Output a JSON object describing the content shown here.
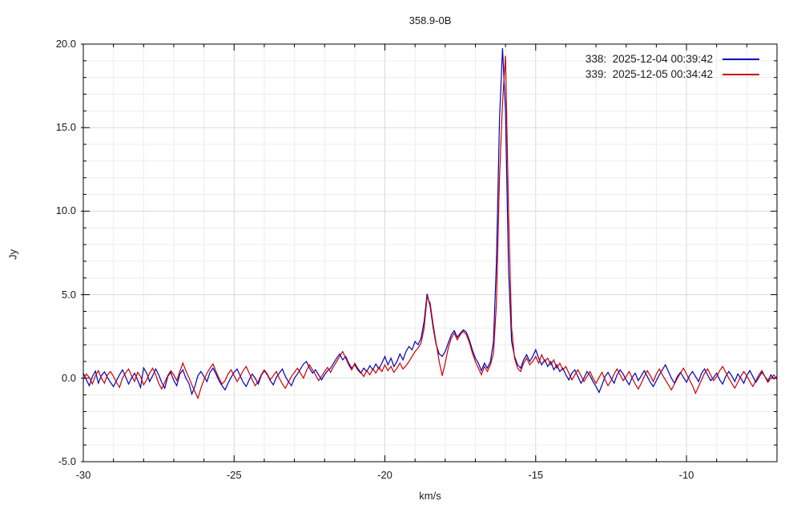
{
  "title": "358.9-0B",
  "axes": {
    "x_label": "km/s",
    "y_label": "Jy",
    "x_tick_labels": [
      "-30",
      "-25",
      "-20",
      "-15",
      "-10"
    ],
    "x_tick_values": [
      -30,
      -25,
      -20,
      -15,
      -10
    ],
    "y_tick_labels": [
      "20.0",
      "15.0",
      "10.0",
      "5.0",
      "0.0",
      "-5.0"
    ],
    "y_tick_values": [
      20,
      15,
      10,
      5,
      0,
      -5
    ]
  },
  "legend": {
    "entries": [
      {
        "id": "338",
        "label": "338:  2025-12-04 00:39:42",
        "color": "#0000bb"
      },
      {
        "id": "339",
        "label": "339:  2025-12-05 00:34:42",
        "color": "#cc0000"
      }
    ]
  },
  "colors": {
    "background": "#ffffff",
    "border": "#000000",
    "grid_minor": "#ececec",
    "grid_major": "#d8d8d8",
    "text": "#1a1a1a",
    "series_338": "#0000bb",
    "series_339": "#cc0000"
  },
  "chart_data": {
    "type": "line",
    "title": "358.9-0B",
    "xlabel": "km/s",
    "ylabel": "Jy",
    "xlim": [
      -30,
      -7
    ],
    "ylim": [
      -5,
      20
    ],
    "x_major_tick": 5,
    "x_minor_tick": 1,
    "y_major_tick": 5,
    "y_minor_tick": 1,
    "grid": "minor-and-major-lines",
    "legend_position": "top-right",
    "features_note": "main peak ~19.7 Jy at -16.05 km/s; secondary peak ~5.0 Jy at -18.6 km/s; double bump ~2.9 Jy at -17.7/-17.4 km/s; noise baseline ~0 Jy",
    "series": [
      {
        "name": "338:  2025-12-04 00:39:42",
        "color": "#0000bb",
        "x_start": -30.0,
        "dx": 0.1,
        "values": [
          0.3,
          -0.1,
          -0.45,
          0.1,
          0.42,
          -0.3,
          0.15,
          0.38,
          0.05,
          -0.25,
          -0.5,
          -0.15,
          0.2,
          0.5,
          0.1,
          -0.35,
          0.0,
          0.3,
          -0.1,
          -0.55,
          0.62,
          0.3,
          -0.2,
          0.15,
          0.55,
          0.2,
          -0.25,
          -0.6,
          0.1,
          0.35,
          -0.15,
          -0.45,
          0.25,
          0.5,
          0.0,
          -0.3,
          -0.95,
          -0.5,
          0.15,
          0.4,
          0.1,
          -0.2,
          0.35,
          0.6,
          0.25,
          -0.15,
          -0.45,
          -0.7,
          -0.3,
          0.05,
          0.35,
          0.55,
          0.15,
          -0.25,
          -0.5,
          -0.1,
          0.25,
          0.0,
          -0.35,
          0.15,
          0.45,
          0.2,
          -0.15,
          -0.4,
          0.05,
          0.3,
          0.55,
          0.1,
          -0.2,
          -0.45,
          0.0,
          0.25,
          0.55,
          0.85,
          1.0,
          0.6,
          0.3,
          0.5,
          0.2,
          -0.1,
          0.2,
          0.45,
          0.6,
          0.9,
          1.2,
          1.45,
          1.1,
          1.3,
          0.9,
          0.6,
          0.8,
          0.5,
          0.3,
          0.6,
          0.4,
          0.75,
          0.5,
          0.85,
          0.55,
          0.9,
          1.3,
          0.8,
          1.2,
          0.7,
          1.0,
          1.45,
          1.1,
          1.6,
          1.9,
          1.7,
          2.2,
          2.0,
          2.4,
          3.4,
          5.05,
          4.3,
          3.0,
          2.0,
          1.45,
          1.3,
          1.6,
          2.1,
          2.6,
          2.85,
          2.45,
          2.7,
          2.9,
          2.75,
          2.3,
          1.7,
          1.2,
          0.9,
          0.45,
          0.9,
          0.6,
          1.0,
          2.2,
          7.0,
          15.5,
          19.75,
          16.0,
          6.5,
          2.2,
          1.3,
          0.8,
          0.6,
          1.1,
          1.4,
          1.0,
          1.3,
          1.7,
          1.2,
          0.8,
          1.1,
          0.7,
          1.0,
          0.5,
          0.8,
          0.4,
          0.6,
          0.2,
          -0.1,
          0.3,
          0.5,
          0.1,
          -0.3,
          0.0,
          0.4,
          0.15,
          -0.2,
          -0.5,
          -0.85,
          -0.4,
          0.1,
          0.35,
          0.0,
          -0.3,
          0.2,
          0.5,
          0.25,
          -0.1,
          -0.4,
          0.05,
          0.3,
          -0.15,
          0.15,
          0.45,
          0.1,
          -0.25,
          -0.5,
          -0.15,
          0.2,
          0.5,
          0.8,
          0.4,
          0.0,
          -0.3,
          0.1,
          0.35,
          0.05,
          -0.25,
          0.15,
          0.4,
          0.1,
          -0.2,
          0.3,
          0.55,
          0.2,
          -0.15,
          0.05,
          0.3,
          -0.1,
          -0.35,
          0.1,
          0.4,
          0.15,
          -0.2,
          0.25,
          0.0,
          -0.3,
          0.15,
          0.45,
          0.1,
          -0.25,
          0.05,
          0.35,
          0.1,
          -0.15,
          0.2,
          -0.05,
          0.1
        ]
      },
      {
        "name": "339:  2025-12-05 00:34:42",
        "color": "#cc0000",
        "x_start": -30.0,
        "dx": 0.1,
        "values": [
          -0.1,
          0.25,
          0.05,
          -0.35,
          0.15,
          0.45,
          0.0,
          -0.3,
          0.2,
          0.4,
          0.1,
          -0.25,
          -0.55,
          0.0,
          0.3,
          0.55,
          0.15,
          -0.2,
          0.35,
          0.1,
          -0.4,
          -0.1,
          0.3,
          0.6,
          0.2,
          -0.3,
          -0.65,
          -0.25,
          0.15,
          0.45,
          0.2,
          -0.15,
          0.4,
          0.9,
          0.45,
          0.05,
          -0.4,
          -0.8,
          -1.2,
          -0.6,
          -0.1,
          0.3,
          0.6,
          0.85,
          0.4,
          0.0,
          -0.35,
          -0.15,
          0.25,
          0.5,
          0.15,
          -0.2,
          0.1,
          0.45,
          0.7,
          0.3,
          -0.1,
          -0.45,
          -0.2,
          0.2,
          0.5,
          0.25,
          -0.1,
          0.15,
          0.4,
          0.0,
          -0.35,
          -0.6,
          -0.25,
          0.1,
          0.35,
          0.6,
          0.3,
          0.0,
          0.45,
          0.8,
          0.5,
          0.2,
          -0.15,
          0.1,
          0.4,
          0.65,
          0.35,
          0.7,
          1.0,
          1.3,
          1.6,
          1.2,
          0.8,
          0.5,
          0.9,
          0.6,
          0.35,
          0.1,
          0.45,
          0.2,
          0.55,
          0.3,
          0.65,
          0.4,
          0.8,
          0.45,
          0.7,
          0.35,
          0.6,
          0.9,
          0.55,
          0.75,
          1.0,
          1.3,
          1.6,
          1.8,
          2.1,
          3.0,
          4.85,
          4.5,
          3.2,
          2.1,
          1.0,
          0.15,
          0.9,
          1.8,
          2.4,
          2.7,
          2.3,
          2.6,
          2.8,
          2.6,
          2.15,
          1.5,
          1.0,
          0.6,
          0.2,
          0.7,
          0.4,
          0.8,
          1.5,
          4.5,
          12.0,
          16.5,
          19.3,
          10.0,
          3.0,
          1.2,
          0.6,
          0.4,
          0.9,
          1.2,
          0.8,
          1.0,
          1.3,
          0.9,
          1.4,
          1.0,
          1.2,
          0.8,
          1.1,
          0.6,
          0.9,
          0.5,
          0.7,
          0.3,
          -0.1,
          0.2,
          0.5,
          0.15,
          -0.2,
          0.1,
          0.4,
          0.0,
          -0.3,
          0.05,
          0.35,
          -0.1,
          -0.45,
          -0.15,
          0.25,
          0.55,
          0.2,
          -0.15,
          0.1,
          0.4,
          0.0,
          -0.35,
          -0.65,
          -0.3,
          0.1,
          0.45,
          0.15,
          -0.2,
          0.25,
          0.55,
          0.2,
          -0.1,
          -0.4,
          -0.7,
          -0.35,
          0.0,
          0.3,
          0.6,
          0.25,
          -0.1,
          -0.45,
          -0.9,
          -0.5,
          -0.1,
          0.3,
          0.55,
          0.2,
          -0.15,
          0.1,
          0.45,
          0.7,
          0.35,
          0.0,
          -0.3,
          -0.6,
          -0.25,
          0.1,
          0.4,
          0.15,
          -0.2,
          -0.5,
          -0.15,
          0.2,
          0.45,
          0.1,
          -0.25,
          0.0,
          0.2,
          -0.1
        ]
      }
    ]
  }
}
